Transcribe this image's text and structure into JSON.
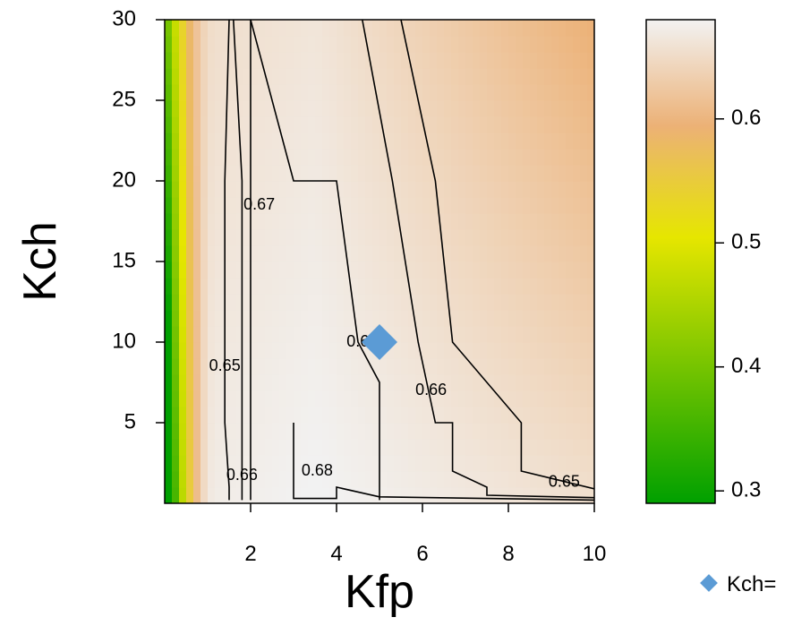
{
  "chart_data": {
    "type": "heatmap",
    "title": "",
    "xlabel": "Kfp",
    "ylabel": "Kch",
    "xlim": [
      0.2,
      10
    ],
    "ylim": [
      0.2,
      30
    ],
    "x_ticks": [
      2,
      4,
      6,
      8,
      10
    ],
    "y_ticks": [
      5,
      10,
      15,
      20,
      25,
      30
    ],
    "colorbar": {
      "range": [
        0.29,
        0.68
      ],
      "ticks": [
        0.3,
        0.4,
        0.5,
        0.6
      ],
      "colors": [
        "#00a000",
        "#e6e600",
        "#ecb176",
        "#f2f2f2"
      ]
    },
    "contours": [
      {
        "level": 0.65,
        "label": "0.65",
        "points": [
          [
            1.5,
            30
          ],
          [
            1.4,
            20
          ],
          [
            1.4,
            5
          ],
          [
            1.5,
            1
          ],
          [
            1.5,
            0.2
          ]
        ],
        "label_at": [
          1.4,
          8.5
        ]
      },
      {
        "level": 0.65,
        "label": "0.65",
        "points": [
          [
            5.5,
            30
          ],
          [
            6.3,
            20
          ],
          [
            6.7,
            10
          ],
          [
            8.3,
            5
          ],
          [
            8.3,
            2
          ],
          [
            10,
            0.9
          ]
        ],
        "label_at": [
          9.3,
          1.3
        ]
      },
      {
        "level": 0.66,
        "label": "0.66",
        "points": [
          [
            1.6,
            30
          ],
          [
            1.8,
            20
          ],
          [
            1.8,
            5
          ],
          [
            1.8,
            0.2
          ]
        ],
        "label_at": [
          1.8,
          1.7
        ]
      },
      {
        "level": 0.66,
        "label": "0.66",
        "points": [
          [
            4.6,
            30
          ],
          [
            5.3,
            20
          ],
          [
            5.9,
            10
          ],
          [
            6.3,
            5
          ],
          [
            6.7,
            5
          ],
          [
            6.7,
            2
          ],
          [
            7.5,
            1
          ],
          [
            7.5,
            0.5
          ],
          [
            10,
            0.35
          ]
        ],
        "label_at": [
          6.2,
          7.0
        ]
      },
      {
        "level": 0.67,
        "label": "0.67",
        "points": [
          [
            2.0,
            30
          ],
          [
            2.0,
            0.2
          ]
        ],
        "label_at": [
          2.2,
          18.5
        ]
      },
      {
        "level": 0.67,
        "label": "0.67",
        "points": [
          [
            2.0,
            30
          ],
          [
            3.0,
            20
          ],
          [
            4.0,
            20
          ],
          [
            4.5,
            10
          ],
          [
            5.0,
            7.5
          ],
          [
            5.0,
            5
          ],
          [
            5.0,
            0.2
          ]
        ],
        "label_at": [
          4.6,
          10
        ]
      },
      {
        "level": 0.68,
        "label": "0.68",
        "points": [
          [
            3.0,
            5
          ],
          [
            3.0,
            0.3
          ],
          [
            4.0,
            0.3
          ],
          [
            4.0,
            1
          ],
          [
            5.0,
            0.4
          ],
          [
            10,
            0.2
          ]
        ],
        "label_at": [
          3.55,
          2.0
        ]
      }
    ],
    "marker": {
      "x": 5,
      "y": 10,
      "color": "#5b9bd5",
      "shape": "diamond"
    },
    "legend": {
      "label": "Kch=",
      "color": "#5b9bd5",
      "shape": "diamond",
      "position": "bottom-right"
    }
  }
}
